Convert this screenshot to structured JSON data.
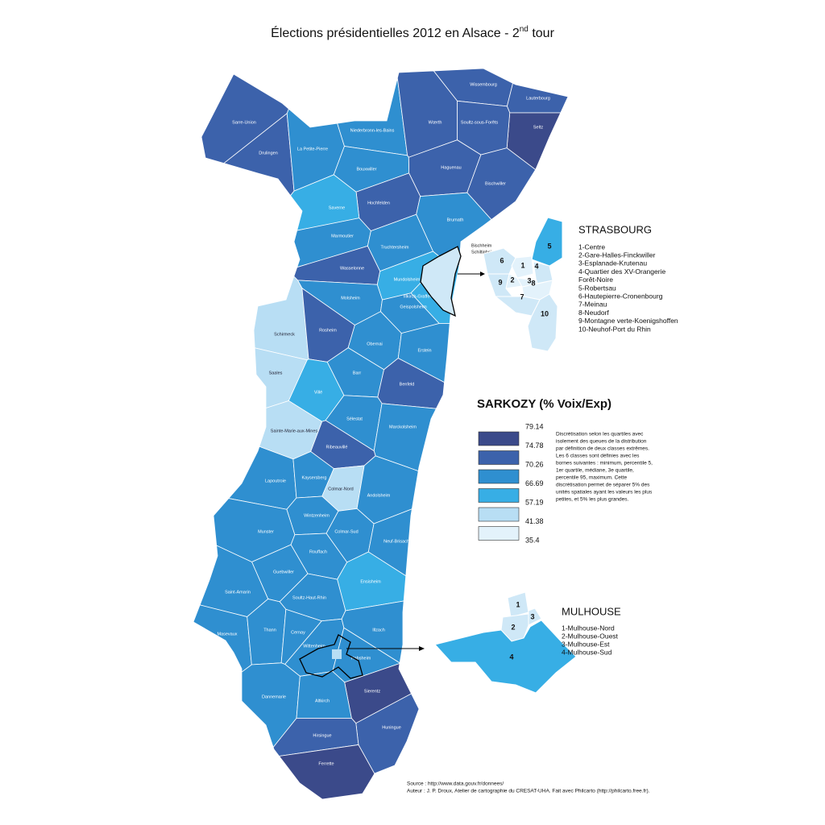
{
  "title": "Élections présidentielles 2012 en Alsace - 2",
  "title_superscript": "nd",
  "title_suffix": " tour",
  "cantons": [
    {
      "name": "Wissembourg",
      "color": "#3c62ab"
    },
    {
      "name": "Lauterbourg",
      "color": "#3c62ab"
    },
    {
      "name": "Seltz",
      "color": "#3b4a8a"
    },
    {
      "name": "Sarre-Union",
      "color": "#3c62ab"
    },
    {
      "name": "Drulingen",
      "color": "#3c62ab"
    },
    {
      "name": "La Petite-Pierre",
      "color": "#2f8fd0"
    },
    {
      "name": "Niederbronn-les-Bains",
      "color": "#2f8fd0"
    },
    {
      "name": "Wœrth",
      "color": "#3c62ab"
    },
    {
      "name": "Soultz-sous-Forêts",
      "color": "#3c62ab"
    },
    {
      "name": "Haguenau",
      "color": "#3c62ab"
    },
    {
      "name": "Bischwiller",
      "color": "#3c62ab"
    },
    {
      "name": "Bouxwiller",
      "color": "#2f8fd0"
    },
    {
      "name": "Hochfelden",
      "color": "#3c62ab"
    },
    {
      "name": "Saverne",
      "color": "#37aee5"
    },
    {
      "name": "Brumath",
      "color": "#2f8fd0"
    },
    {
      "name": "Marmoutier",
      "color": "#2f8fd0"
    },
    {
      "name": "Truchtersheim",
      "color": "#2f8fd0"
    },
    {
      "name": "Wasselonne",
      "color": "#3c62ab"
    },
    {
      "name": "Mundolsheim",
      "color": "#37aee5"
    },
    {
      "name": "Molsheim",
      "color": "#2f8fd0"
    },
    {
      "name": "Illkirch-Graffenstaden",
      "color": "#37aee5"
    },
    {
      "name": "Geispolsheim",
      "color": "#2f8fd0"
    },
    {
      "name": "Schirmeck",
      "color": "#b8def4"
    },
    {
      "name": "Rosheim",
      "color": "#3c62ab"
    },
    {
      "name": "Obernai",
      "color": "#2f8fd0"
    },
    {
      "name": "Erstein",
      "color": "#2f8fd0"
    },
    {
      "name": "Saales",
      "color": "#b8def4"
    },
    {
      "name": "Barr",
      "color": "#2f8fd0"
    },
    {
      "name": "Benfeld",
      "color": "#3c62ab"
    },
    {
      "name": "Villé",
      "color": "#37aee5"
    },
    {
      "name": "Sélestat",
      "color": "#2f8fd0"
    },
    {
      "name": "Sainte-Marie-aux-Mines",
      "color": "#b8def4"
    },
    {
      "name": "Marckolsheim",
      "color": "#2f8fd0"
    },
    {
      "name": "Ribeauvillé",
      "color": "#3c62ab"
    },
    {
      "name": "Lapoutroie",
      "color": "#2f8fd0"
    },
    {
      "name": "Kaysersberg",
      "color": "#2f8fd0"
    },
    {
      "name": "Colmar-Nord",
      "color": "#b8def4"
    },
    {
      "name": "Andolsheim",
      "color": "#2f8fd0"
    },
    {
      "name": "Wintzenheim",
      "color": "#2f8fd0"
    },
    {
      "name": "Munster",
      "color": "#2f8fd0"
    },
    {
      "name": "Colmar-Sud",
      "color": "#2f8fd0"
    },
    {
      "name": "Neuf-Brisach",
      "color": "#2f8fd0"
    },
    {
      "name": "Rouffach",
      "color": "#2f8fd0"
    },
    {
      "name": "Guebwiller",
      "color": "#2f8fd0"
    },
    {
      "name": "Ensisheim",
      "color": "#37aee5"
    },
    {
      "name": "Saint-Amarin",
      "color": "#2f8fd0"
    },
    {
      "name": "Soultz-Haut-Rhin",
      "color": "#2f8fd0"
    },
    {
      "name": "Masevaux",
      "color": "#2f8fd0"
    },
    {
      "name": "Thann",
      "color": "#2f8fd0"
    },
    {
      "name": "Cernay",
      "color": "#2f8fd0"
    },
    {
      "name": "Illzach",
      "color": "#2f8fd0"
    },
    {
      "name": "Wittenheim",
      "color": "#2f8fd0"
    },
    {
      "name": "Habsheim",
      "color": "#2f8fd0"
    },
    {
      "name": "Sierentz",
      "color": "#3b4a8a"
    },
    {
      "name": "Dannemarie",
      "color": "#2f8fd0"
    },
    {
      "name": "Altkirch",
      "color": "#2f8fd0"
    },
    {
      "name": "Huningue",
      "color": "#3c62ab"
    },
    {
      "name": "Hirsingue",
      "color": "#3c62ab"
    },
    {
      "name": "Ferrette",
      "color": "#3b4a8a"
    }
  ],
  "strasbourg": {
    "title": "STRASBOURG",
    "city_labels": [
      "Bischheim",
      "Schiltigheim"
    ],
    "map_labels": [
      "1",
      "2",
      "3",
      "4",
      "5",
      "6",
      "7",
      "8",
      "9",
      "10"
    ],
    "list": [
      "1-Centre",
      "2-Gare-Halles-Finckwiller",
      "3-Esplanade-Krutenau",
      "4-Quartier des XV-Orangerie",
      "Forêt-Noire",
      "5-Robertsau",
      "6-Hautepierre-Cronenbourg",
      "7-Meinau",
      "8-Neudorf",
      "9-Montagne verte-Koenigshoffen",
      "10-Neuhof-Port du Rhin"
    ]
  },
  "mulhouse": {
    "title": "MULHOUSE",
    "map_labels": [
      "1",
      "2",
      "3",
      "4"
    ],
    "list": [
      "1-Mulhouse-Nord",
      "2-Mulhouse-Ouest",
      "3-Mulhouse-Est",
      "4-Mulhouse-Sud"
    ]
  },
  "legend": {
    "title": "SARKOZY (% Voix/Exp)",
    "breaks": [
      79.14,
      74.78,
      70.26,
      66.69,
      57.19,
      41.38,
      35.4
    ],
    "colors": [
      "#3b4a8a",
      "#3c62ab",
      "#2f8fd0",
      "#37aee5",
      "#b8def4",
      "#e3f2fb"
    ],
    "note": [
      "Discrétisation selon les quartiles avec",
      "isolement des queues de la distribution",
      "par définition de deux classes extrêmes.",
      "Les 6 classes sont définies avec les",
      "bornes suivantes : minimum, percentile 5,",
      "1er quartile, médiane, 3e quartile,",
      "percentile 95, maximum. Cette",
      "discrétisation permet de séparer 5% des",
      "unités spatiales ayant les valeurs les plus",
      "petites, et 5% les plus grandes."
    ]
  },
  "source": [
    "Source : http://www.data.gouv.fr/donnees/",
    "Auteur : J. P. Droux, Atelier de cartographie du CRESAT-UHA. Fait avec Philcarto (http://philcarto.free.fr)."
  ]
}
